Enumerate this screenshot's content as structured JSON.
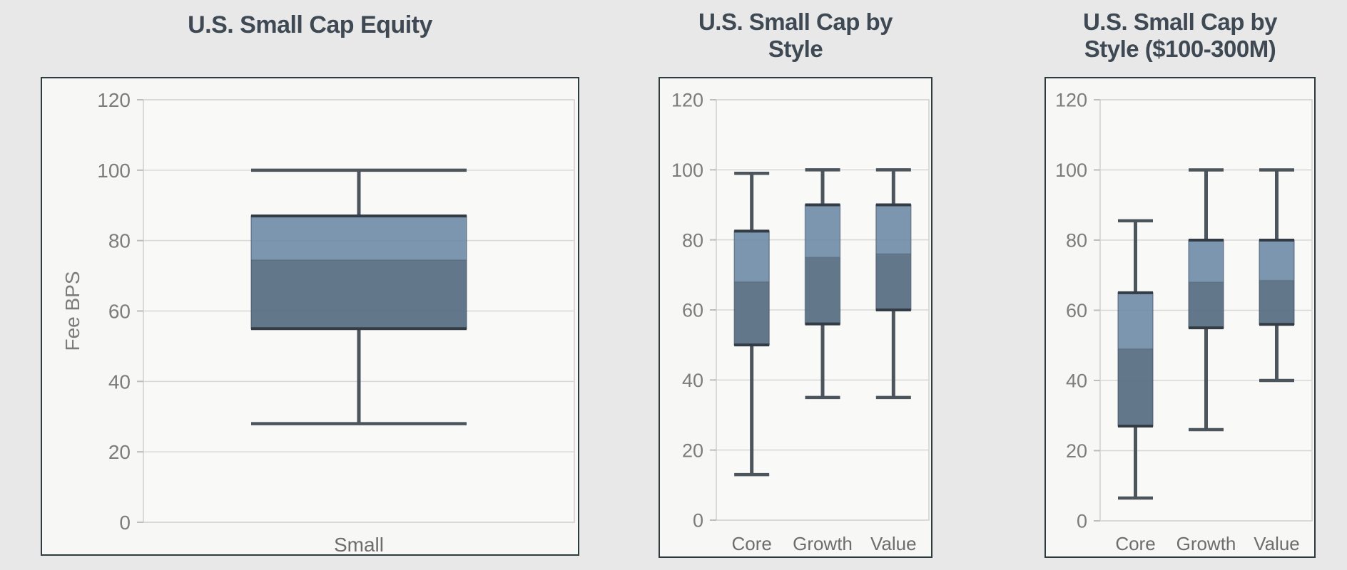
{
  "page": {
    "background": "#e8e8e8",
    "description": "Three box-and-whisker fee charts"
  },
  "colors": {
    "box_upper_fill": "#6e8ba7",
    "box_lower_fill": "#5b7084",
    "box_border": "#333c44",
    "whisker": "#4c545c",
    "grid": "#d7d7d7",
    "frame": "#cfcfcf",
    "plot_bg": "#f9f9f8",
    "tick_text": "#7c7c7c",
    "category_text": "#6d6d6d",
    "title_text": "#3e4954",
    "panel_bg": "#f7f7f6",
    "panel_border": "#2d3b3f"
  },
  "chart_data": [
    {
      "type": "box",
      "title": "U.S. Small Cap Equity",
      "title_lines": [
        "U.S. Small Cap Equity"
      ],
      "ylabel": "Fee BPS",
      "ylim": [
        0,
        120
      ],
      "yticks": [
        0,
        20,
        40,
        60,
        80,
        100,
        120
      ],
      "grid": true,
      "categories": [
        "Small"
      ],
      "boxes": [
        {
          "name": "Small",
          "min": 28,
          "q1": 55,
          "median": 74.5,
          "q3": 87,
          "max": 100
        }
      ]
    },
    {
      "type": "box",
      "title": "U.S. Small Cap by Style",
      "title_lines": [
        "U.S. Small Cap by",
        "Style"
      ],
      "ylabel": "",
      "ylim": [
        0,
        120
      ],
      "yticks": [
        0,
        20,
        40,
        60,
        80,
        100,
        120
      ],
      "grid": true,
      "categories": [
        "Core",
        "Growth",
        "Value"
      ],
      "boxes": [
        {
          "name": "Core",
          "min": 13,
          "q1": 50,
          "median": 68,
          "q3": 82.5,
          "max": 99
        },
        {
          "name": "Growth",
          "min": 35,
          "q1": 56,
          "median": 75,
          "q3": 90,
          "max": 100
        },
        {
          "name": "Value",
          "min": 35,
          "q1": 60,
          "median": 76,
          "q3": 90,
          "max": 100
        }
      ]
    },
    {
      "type": "box",
      "title": "U.S. Small Cap by Style ($100-300M)",
      "title_lines": [
        "U.S. Small Cap by",
        "Style ($100-300M)"
      ],
      "ylabel": "",
      "ylim": [
        0,
        120
      ],
      "yticks": [
        0,
        20,
        40,
        60,
        80,
        100,
        120
      ],
      "grid": true,
      "categories": [
        "Core",
        "Growth",
        "Value"
      ],
      "boxes": [
        {
          "name": "Core",
          "min": 6.5,
          "q1": 27,
          "median": 49,
          "q3": 65,
          "max": 85.5
        },
        {
          "name": "Growth",
          "min": 26,
          "q1": 55,
          "median": 68,
          "q3": 80,
          "max": 100
        },
        {
          "name": "Value",
          "min": 40,
          "q1": 56,
          "median": 68.5,
          "q3": 80,
          "max": 100
        }
      ]
    }
  ]
}
